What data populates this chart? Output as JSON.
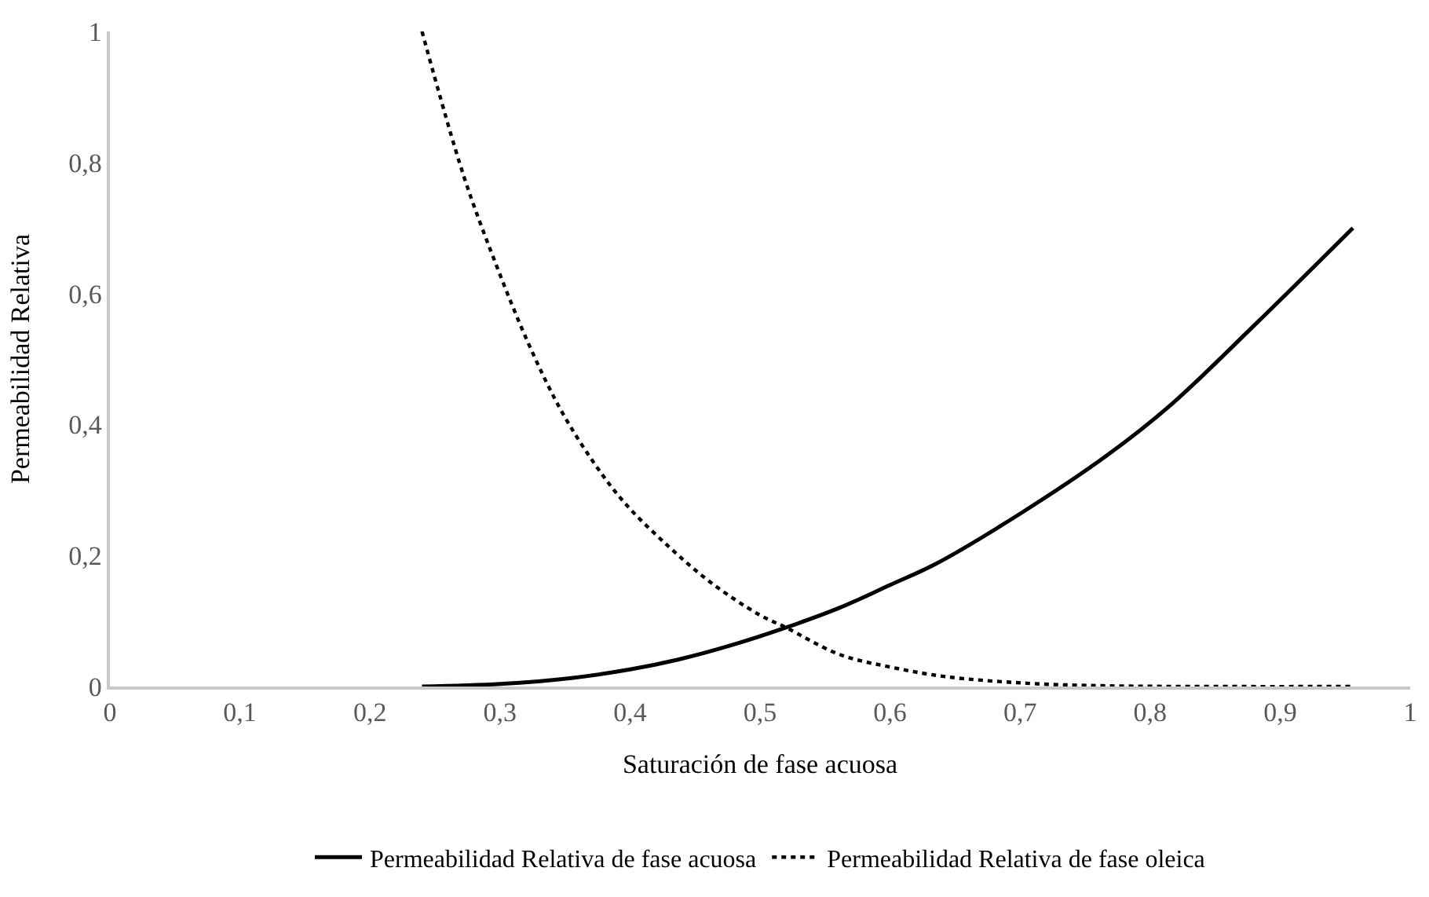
{
  "chart_data": {
    "type": "line",
    "xlabel": "Saturación de fase acuosa",
    "ylabel": "Permeabilidad Relativa",
    "xlim": [
      0,
      1
    ],
    "ylim": [
      0,
      1
    ],
    "xticks": [
      0,
      {
        "value": 0.1,
        "label": "0,1"
      },
      {
        "value": 0.2,
        "label": "0,2"
      },
      {
        "value": 0.3,
        "label": "0,3"
      },
      {
        "value": 0.4,
        "label": "0,4"
      },
      {
        "value": 0.5,
        "label": "0,5"
      },
      {
        "value": 0.6,
        "label": "0,6"
      },
      {
        "value": 0.7,
        "label": "0,7"
      },
      {
        "value": 0.8,
        "label": "0,8"
      },
      {
        "value": 0.9,
        "label": "0,9"
      },
      1
    ],
    "yticks": [
      0,
      {
        "value": 0.2,
        "label": "0,2"
      },
      {
        "value": 0.4,
        "label": "0,4"
      },
      {
        "value": 0.6,
        "label": "0,6"
      },
      {
        "value": 0.8,
        "label": "0,8"
      },
      1
    ],
    "legend": "bottom",
    "marker": "none",
    "series": [
      {
        "name": "Permeabilidad Relativa de fase acuosa",
        "color": "#000000",
        "line_style": "solid",
        "x": [
          0.24,
          0.3,
          0.355,
          0.4,
          0.437,
          0.478,
          0.52,
          0.561,
          0.6,
          0.635,
          0.701,
          0.767,
          0.816,
          0.882,
          0.956
        ],
        "values": [
          0,
          0.004,
          0.013,
          0.026,
          0.041,
          0.063,
          0.09,
          0.12,
          0.155,
          0.187,
          0.265,
          0.353,
          0.43,
          0.555,
          0.7
        ]
      },
      {
        "name": "Permeabilidad Relativa de fase oleica",
        "color": "#000000",
        "line_style": "dotted",
        "x": [
          0.24,
          0.272,
          0.297,
          0.322,
          0.346,
          0.371,
          0.396,
          0.429,
          0.462,
          0.499,
          0.52,
          0.561,
          0.602,
          0.643,
          0.705,
          0.767,
          0.85,
          0.956
        ],
        "values": [
          1,
          0.78,
          0.644,
          0.523,
          0.425,
          0.345,
          0.28,
          0.215,
          0.159,
          0.11,
          0.09,
          0.049,
          0.029,
          0.015,
          0.005,
          0.001,
          0,
          0
        ]
      }
    ]
  }
}
